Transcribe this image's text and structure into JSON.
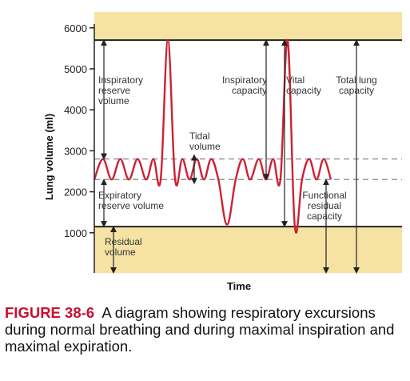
{
  "chart_data": {
    "type": "line",
    "xlabel": "Time",
    "ylabel": "Lung volume (ml)",
    "yticks": [
      1000,
      2000,
      3000,
      4000,
      5000,
      6000
    ],
    "ylim": [
      0,
      6400
    ],
    "xlim": [
      0,
      10
    ],
    "total_lung_capacity": 5700,
    "residual_volume": 1150,
    "tidal_upper": 2800,
    "tidal_lower": 2300,
    "colors": {
      "band": "#f6e3a4",
      "trace": "#cc2233",
      "dash": "#888888",
      "axis": "#222222",
      "fig_label": "#c8102e"
    },
    "series": [
      {
        "values": [
          [
            0,
            2300
          ],
          [
            0.3,
            2800
          ],
          [
            0.6,
            2300
          ],
          [
            0.9,
            2800
          ],
          [
            1.2,
            2300
          ],
          [
            1.5,
            2800
          ],
          [
            1.8,
            2300
          ],
          [
            2.05,
            2800
          ],
          [
            2.3,
            2300
          ],
          [
            2.55,
            5700
          ],
          [
            2.8,
            2300
          ],
          [
            3.05,
            2800
          ],
          [
            3.3,
            2300
          ],
          [
            3.55,
            2800
          ],
          [
            3.8,
            2300
          ],
          [
            4.05,
            2800
          ],
          [
            4.3,
            2300
          ],
          [
            4.6,
            1200
          ],
          [
            4.9,
            2300
          ],
          [
            5.15,
            2800
          ],
          [
            5.4,
            2300
          ],
          [
            5.7,
            2800
          ],
          [
            5.95,
            2300
          ],
          [
            6.2,
            2800
          ],
          [
            6.45,
            2300
          ],
          [
            6.7,
            5700
          ],
          [
            6.95,
            1150
          ],
          [
            7.2,
            2300
          ],
          [
            7.45,
            2800
          ],
          [
            7.7,
            2300
          ],
          [
            7.95,
            2800
          ],
          [
            8.2,
            2300
          ]
        ]
      }
    ],
    "annotations": [
      "Inspiratory\nreserve\nvolume",
      "Tidal\nvolume",
      "Expiratory\nreserve volume",
      "Residual\nvolume",
      "Inspiratory\ncapacity",
      "Vital\ncapacity",
      "Total lung\ncapacity",
      "Functional\nresidual\ncapacity"
    ]
  },
  "caption": {
    "figure_label": "FIGURE 38-6",
    "text": "A diagram showing respiratory excursions during normal breathing and during maximal inspiration and maximal expiration."
  }
}
